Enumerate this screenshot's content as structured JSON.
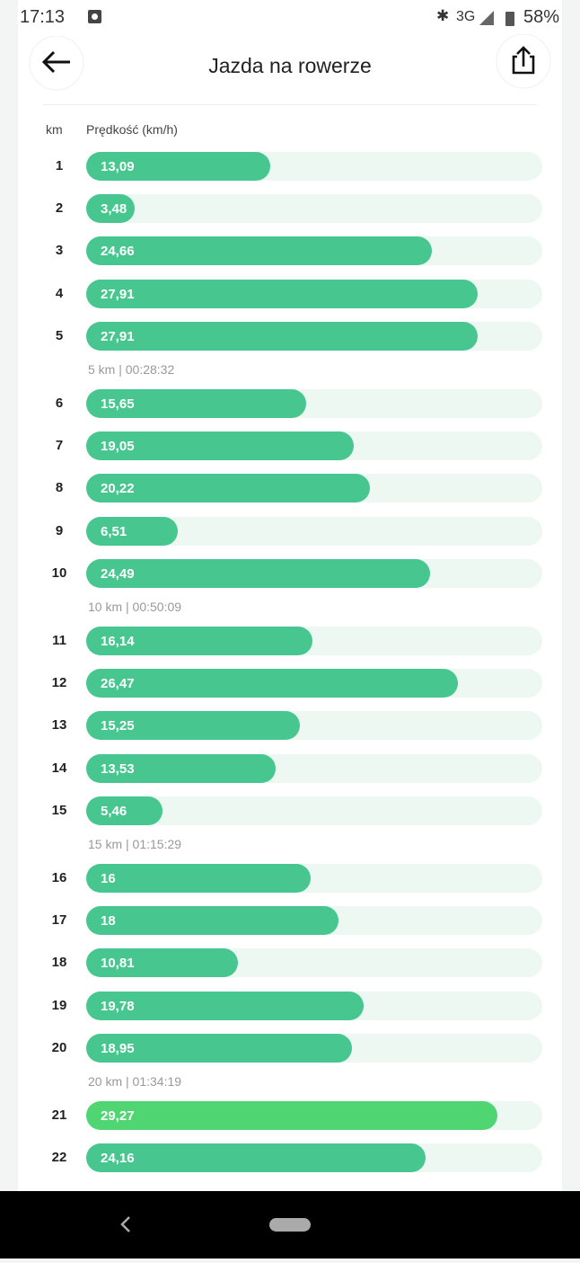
{
  "status_bar": {
    "time": "17:13",
    "network": "3G",
    "battery": "58%"
  },
  "header": {
    "title": "Jazda na rowerze"
  },
  "splits": {
    "column_km": "km",
    "column_speed": "Prędkość (km/h)",
    "km": [
      "1",
      "2",
      "3",
      "4",
      "5",
      "6",
      "7",
      "8",
      "9",
      "10",
      "11",
      "12",
      "13",
      "14",
      "15",
      "16",
      "17",
      "18",
      "19",
      "20",
      "21",
      "22"
    ],
    "values": [
      13.09,
      3.48,
      24.66,
      27.91,
      27.91,
      15.65,
      19.05,
      20.22,
      6.51,
      24.49,
      16.14,
      26.47,
      15.25,
      13.53,
      5.46,
      16,
      18,
      10.81,
      19.78,
      18.95,
      29.27,
      24.16
    ],
    "value_labels": [
      "13,09",
      "3,48",
      "24,66",
      "27,91",
      "27,91",
      "15,65",
      "19,05",
      "20,22",
      "6,51",
      "24,49",
      "16,14",
      "26,47",
      "15,25",
      "13,53",
      "5,46",
      "16",
      "18",
      "10,81",
      "19,78",
      "18,95",
      "29,27",
      "24,16"
    ],
    "bar_colors": [
      "#47c68f",
      "#47c68f",
      "#47c68f",
      "#47c68f",
      "#47c68f",
      "#47c68f",
      "#47c68f",
      "#47c68f",
      "#47c68f",
      "#47c68f",
      "#47c68f",
      "#47c68f",
      "#47c68f",
      "#47c68f",
      "#47c68f",
      "#47c68f",
      "#47c68f",
      "#47c68f",
      "#47c68f",
      "#47c68f",
      "#4fd672",
      "#47c68f"
    ],
    "xlim": [
      0,
      32.5
    ],
    "summaries": [
      "5 km | 00:28:32",
      "10 km | 00:50:09",
      "15 km | 01:15:29",
      "20 km | 01:34:19"
    ]
  }
}
